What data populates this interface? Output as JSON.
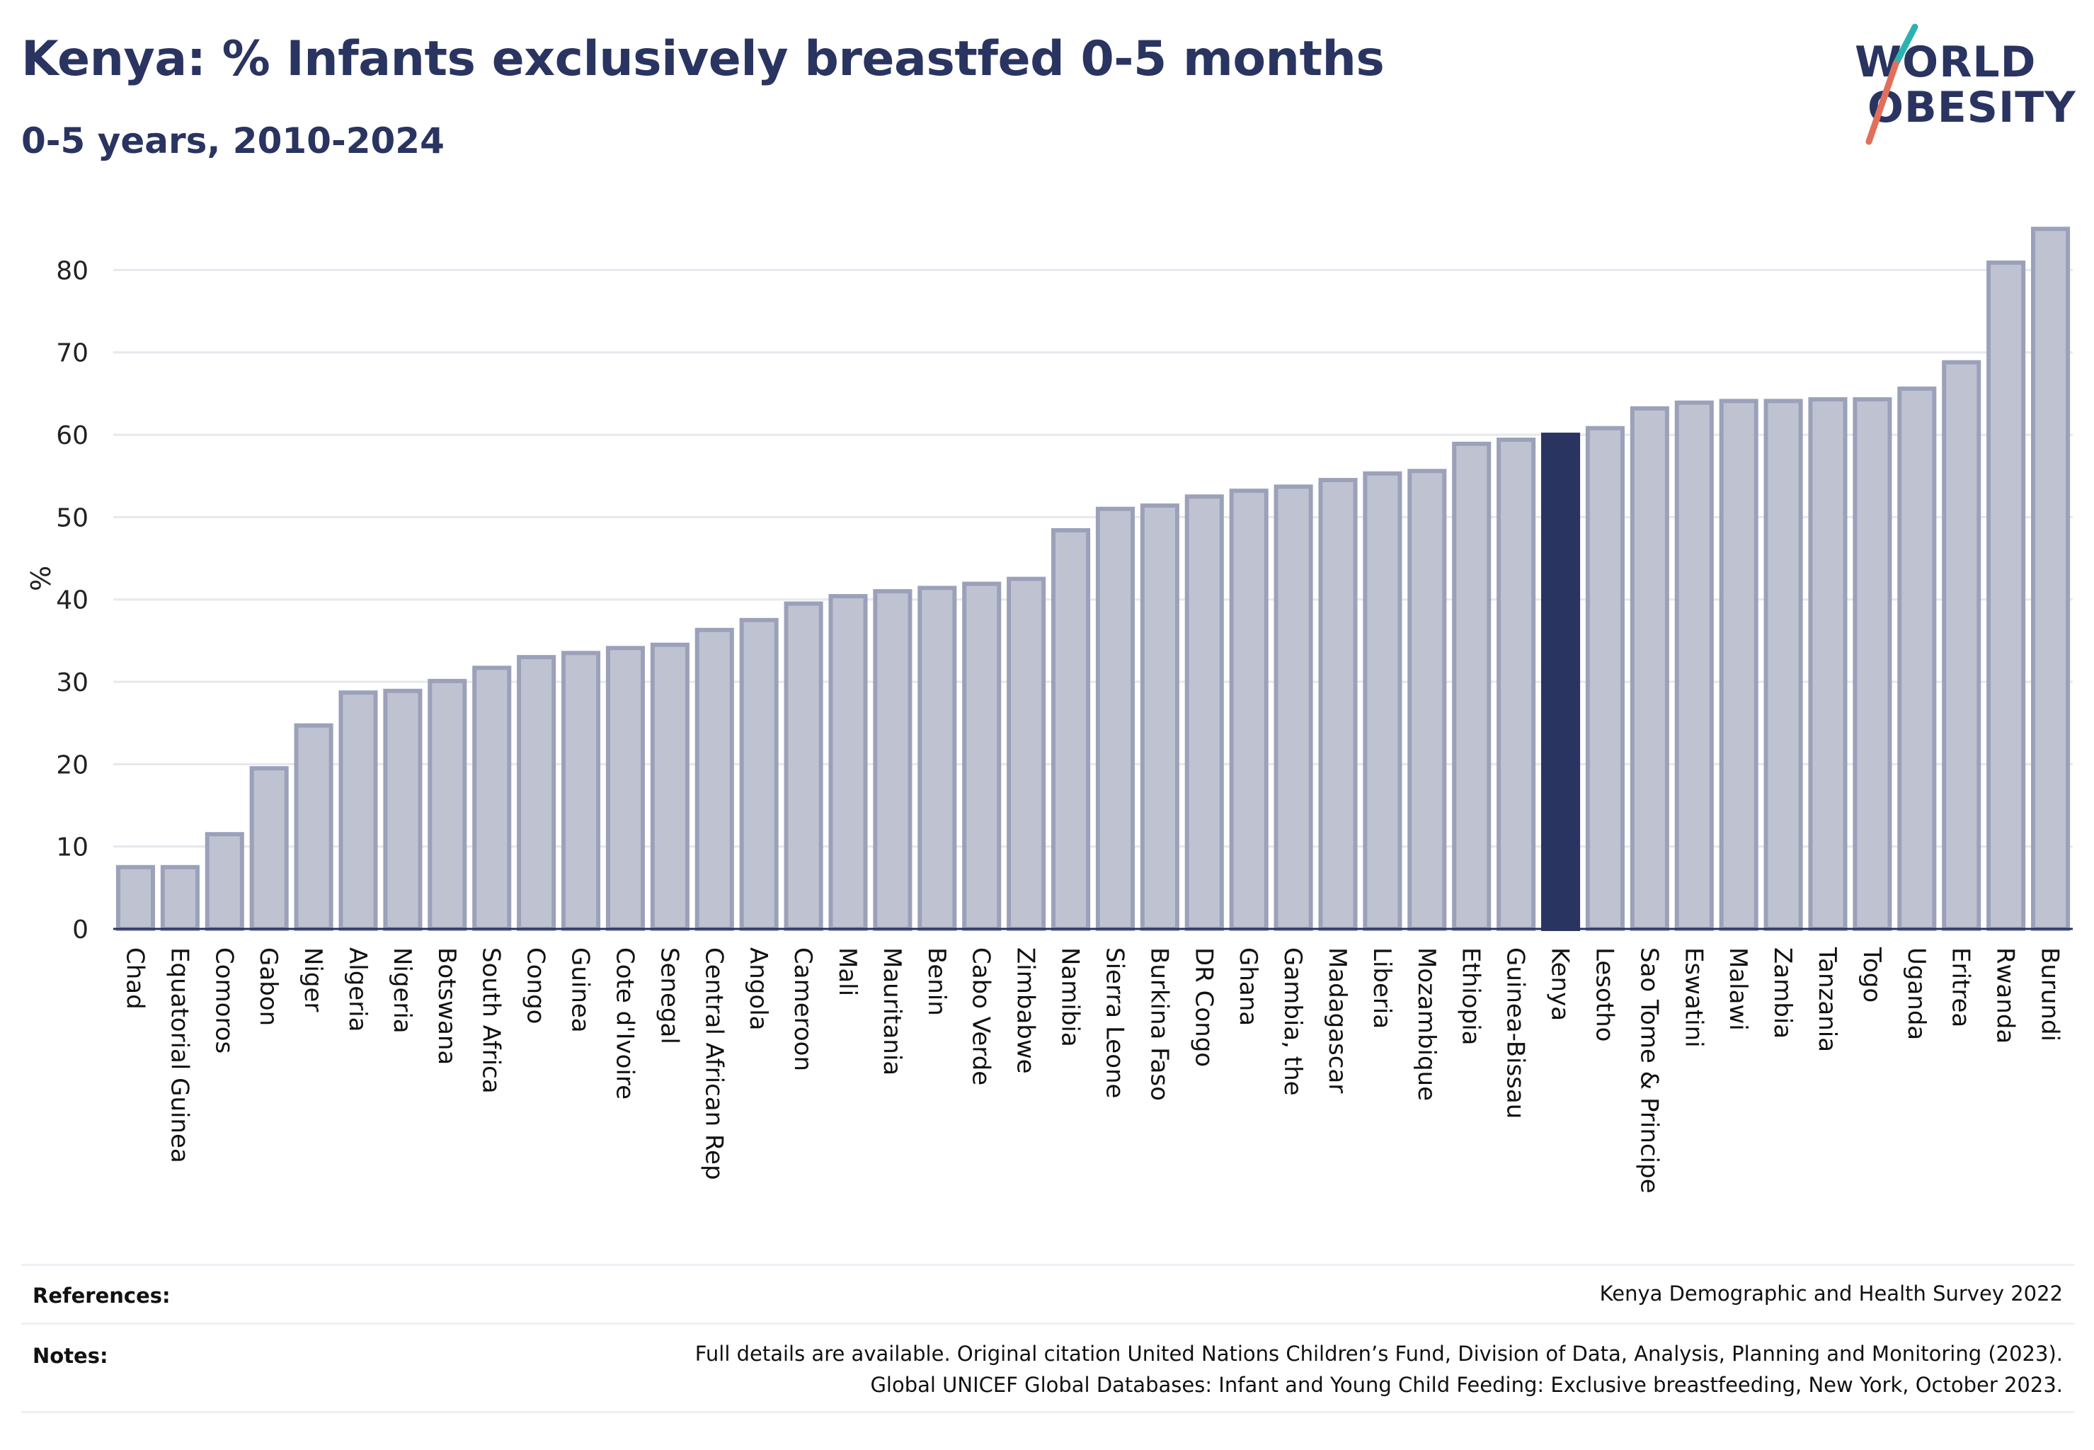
{
  "header": {
    "title": "Kenya: % Infants exclusively breastfed 0-5 months",
    "subtitle": "0-5 years, 2010-2024"
  },
  "logo": {
    "line1": "WORLD",
    "line2": "OBESITY"
  },
  "colors": {
    "bar": "#bfc3d1",
    "bar_edge": "#9ca1ba",
    "highlight": "#2a3461",
    "grid": "#e6e8ee",
    "logo_teal": "#2bb3b1",
    "logo_red": "#e0705c"
  },
  "chart_data": {
    "type": "bar",
    "ylabel": "%",
    "ylim": [
      0,
      87
    ],
    "yticks": [
      0,
      10,
      20,
      30,
      40,
      50,
      60,
      70,
      80
    ],
    "grid": true,
    "highlight": "Kenya",
    "categories": [
      "Chad",
      "Equatorial Guinea",
      "Comoros",
      "Gabon",
      "Niger",
      "Algeria",
      "Nigeria",
      "Botswana",
      "South Africa",
      "Congo",
      "Guinea",
      "Cote d'Ivoire",
      "Senegal",
      "Central African Rep",
      "Angola",
      "Cameroon",
      "Mali",
      "Mauritania",
      "Benin",
      "Cabo Verde",
      "Zimbabwe",
      "Namibia",
      "Sierra Leone",
      "Burkina Faso",
      "DR Congo",
      "Ghana",
      "Gambia, the",
      "Madagascar",
      "Liberia",
      "Mozambique",
      "Ethiopia",
      "Guinea-Bissau",
      "Kenya",
      "Lesotho",
      "Sao Tome & Principe",
      "Eswatini",
      "Malawi",
      "Zambia",
      "Tanzania",
      "Togo",
      "Uganda",
      "Eritrea",
      "Rwanda",
      "Burundi"
    ],
    "values": [
      7.5,
      7.5,
      11.5,
      19.5,
      24.7,
      28.7,
      28.9,
      30.1,
      31.7,
      33.0,
      33.5,
      34.1,
      34.5,
      36.3,
      37.5,
      39.5,
      40.4,
      41.0,
      41.4,
      41.9,
      42.5,
      48.4,
      51.0,
      51.4,
      52.5,
      53.2,
      53.7,
      54.5,
      55.3,
      55.6,
      58.9,
      59.4,
      60.0,
      60.8,
      63.2,
      63.9,
      64.1,
      64.1,
      64.3,
      64.3,
      65.6,
      68.8,
      80.9,
      85.0
    ]
  },
  "footer": {
    "references_label": "References:",
    "references_text": "Kenya Demographic and Health Survey 2022",
    "notes_label": "Notes:",
    "notes_line1": "Full details are available. Original citation United Nations Children’s Fund, Division of Data, Analysis, Planning and Monitoring (2023).",
    "notes_line2": "Global UNICEF Global Databases: Infant and Young Child Feeding: Exclusive breastfeeding, New York, October 2023."
  }
}
